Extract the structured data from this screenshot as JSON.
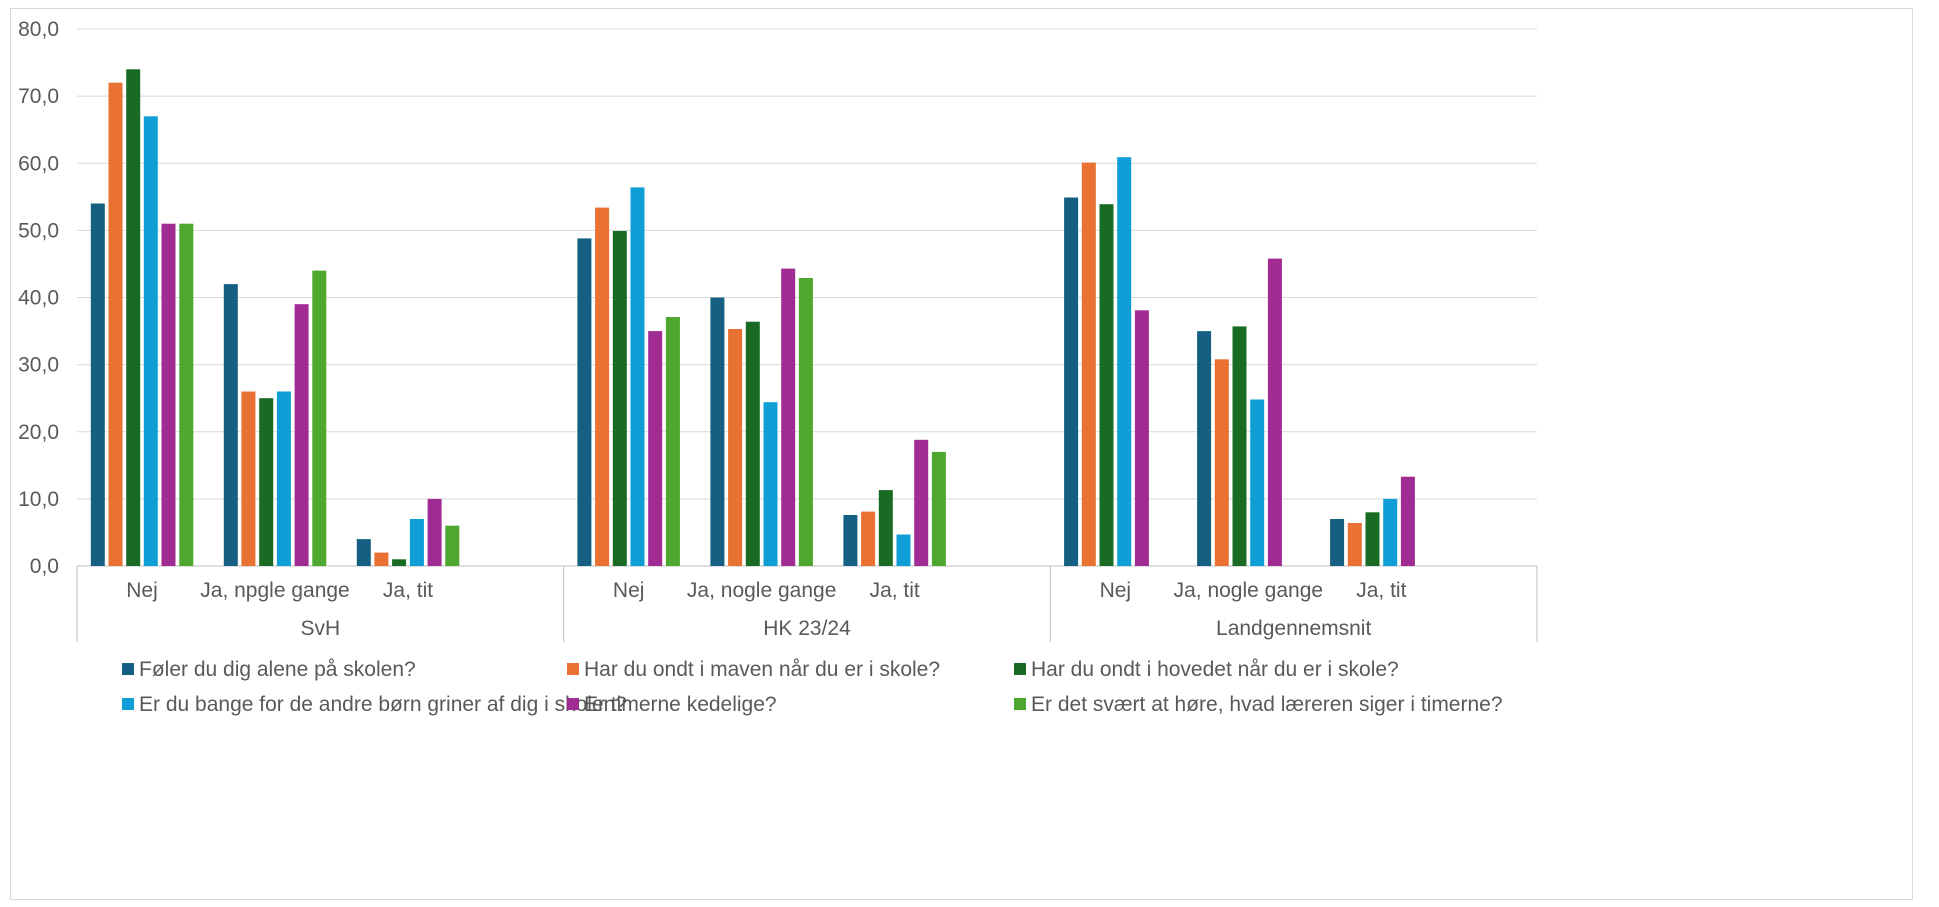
{
  "chart_data": {
    "type": "bar",
    "ylim": [
      0,
      80
    ],
    "yticks": [
      "0,0",
      "10,0",
      "20,0",
      "30,0",
      "40,0",
      "50,0",
      "60,0",
      "70,0",
      "80,0"
    ],
    "grid": true,
    "legend_placement": "bottom",
    "groups": [
      {
        "label": "SvH",
        "categories": [
          "Nej",
          "Ja, npgle gange",
          "Ja, tit"
        ]
      },
      {
        "label": "HK 23/24",
        "categories": [
          "Nej",
          "Ja, nogle gange",
          "Ja, tit"
        ]
      },
      {
        "label": "Landgennemsnit",
        "categories": [
          "Nej",
          "Ja, nogle gange",
          "Ja, tit"
        ]
      }
    ],
    "series": [
      {
        "name": "Føler du dig alene på skolen?",
        "color": "#156082",
        "values": [
          [
            54,
            42,
            4
          ],
          [
            48.8,
            40,
            7.6
          ],
          [
            54.9,
            35,
            7
          ]
        ]
      },
      {
        "name": "Har du ondt i maven når du er i skole?",
        "color": "#E97132",
        "values": [
          [
            72,
            26,
            2
          ],
          [
            53.4,
            35.3,
            8.1
          ],
          [
            60.1,
            30.8,
            6.4
          ]
        ]
      },
      {
        "name": "Har du ondt i hovedet når du er i skole?",
        "color": "#196B24",
        "values": [
          [
            74,
            25,
            1
          ],
          [
            49.9,
            36.4,
            11.3
          ],
          [
            53.9,
            35.7,
            8
          ]
        ]
      },
      {
        "name": "Er du bange for de andre børn griner af dig i skolen?",
        "color": "#0F9ED5",
        "values": [
          [
            67,
            26,
            7
          ],
          [
            56.4,
            24.4,
            4.7
          ],
          [
            60.9,
            24.8,
            10
          ]
        ]
      },
      {
        "name": "Er timerne kedelige?",
        "color": "#A02B93",
        "values": [
          [
            51,
            39,
            10
          ],
          [
            35,
            44.3,
            18.8
          ],
          [
            38.1,
            45.8,
            13.3
          ]
        ]
      },
      {
        "name": "Er det svært at høre, hvad læreren siger i timerne?",
        "color": "#4EA72E",
        "values": [
          [
            51,
            44,
            6
          ],
          [
            37.1,
            42.9,
            17
          ],
          [
            null,
            null,
            null
          ]
        ]
      }
    ]
  }
}
